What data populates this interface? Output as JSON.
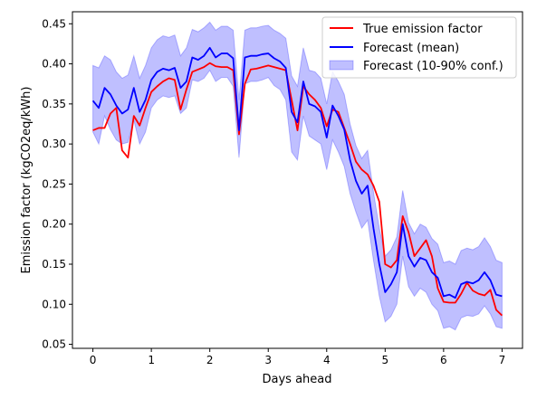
{
  "chart_data": {
    "type": "line",
    "title": "",
    "xlabel": "Days ahead",
    "ylabel": "Emission factor (kgCO2eq/kWh)",
    "xlim": [
      -0.35,
      7.35
    ],
    "ylim": [
      0.045,
      0.465
    ],
    "xticks": [
      0,
      1,
      2,
      3,
      4,
      5,
      6,
      7
    ],
    "xtick_labels": [
      "0",
      "1",
      "2",
      "3",
      "4",
      "5",
      "6",
      "7"
    ],
    "yticks": [
      0.05,
      0.1,
      0.15,
      0.2,
      0.25,
      0.3,
      0.35,
      0.4,
      0.45
    ],
    "ytick_labels": [
      "0.05",
      "0.10",
      "0.15",
      "0.20",
      "0.25",
      "0.30",
      "0.35",
      "0.40",
      "0.45"
    ],
    "grid": false,
    "legend_position": "top-right",
    "legend": {
      "true": "True emission factor",
      "mean": "Forecast (mean)",
      "band": "Forecast (10-90% conf.)"
    },
    "colors": {
      "true": "#ff0000",
      "mean": "#0000ff",
      "band_fill": "#0000ff",
      "band_opacity": 0.25
    },
    "x": [
      0.0,
      0.1,
      0.2,
      0.3,
      0.4,
      0.5,
      0.6,
      0.7,
      0.8,
      0.9,
      1.0,
      1.1,
      1.2,
      1.3,
      1.4,
      1.5,
      1.6,
      1.7,
      1.8,
      1.9,
      2.0,
      2.1,
      2.2,
      2.3,
      2.4,
      2.5,
      2.6,
      2.7,
      2.8,
      2.9,
      3.0,
      3.1,
      3.2,
      3.3,
      3.4,
      3.5,
      3.6,
      3.7,
      3.8,
      3.9,
      4.0,
      4.1,
      4.2,
      4.3,
      4.4,
      4.5,
      4.6,
      4.7,
      4.8,
      4.9,
      5.0,
      5.1,
      5.2,
      5.3,
      5.4,
      5.5,
      5.6,
      5.7,
      5.8,
      5.9,
      6.0,
      6.1,
      6.2,
      6.3,
      6.4,
      6.5,
      6.6,
      6.7,
      6.8,
      6.9,
      7.0
    ],
    "series": [
      {
        "name": "True emission factor",
        "values": [
          0.317,
          0.32,
          0.32,
          0.338,
          0.345,
          0.292,
          0.283,
          0.335,
          0.323,
          0.345,
          0.365,
          0.372,
          0.378,
          0.382,
          0.38,
          0.343,
          0.368,
          0.39,
          0.393,
          0.396,
          0.401,
          0.397,
          0.396,
          0.396,
          0.392,
          0.312,
          0.375,
          0.393,
          0.394,
          0.396,
          0.398,
          0.396,
          0.394,
          0.392,
          0.355,
          0.317,
          0.372,
          0.362,
          0.355,
          0.345,
          0.322,
          0.343,
          0.34,
          0.32,
          0.3,
          0.278,
          0.268,
          0.262,
          0.248,
          0.228,
          0.15,
          0.146,
          0.155,
          0.21,
          0.19,
          0.16,
          0.17,
          0.18,
          0.16,
          0.12,
          0.103,
          0.102,
          0.102,
          0.113,
          0.127,
          0.117,
          0.113,
          0.111,
          0.118,
          0.093,
          0.086
        ]
      },
      {
        "name": "Forecast (mean)",
        "values": [
          0.354,
          0.345,
          0.37,
          0.362,
          0.348,
          0.338,
          0.343,
          0.37,
          0.34,
          0.355,
          0.38,
          0.39,
          0.394,
          0.392,
          0.395,
          0.37,
          0.378,
          0.408,
          0.405,
          0.41,
          0.42,
          0.408,
          0.413,
          0.413,
          0.407,
          0.317,
          0.408,
          0.41,
          0.41,
          0.412,
          0.413,
          0.407,
          0.403,
          0.395,
          0.34,
          0.327,
          0.378,
          0.35,
          0.347,
          0.34,
          0.308,
          0.348,
          0.335,
          0.318,
          0.28,
          0.254,
          0.238,
          0.248,
          0.195,
          0.15,
          0.115,
          0.125,
          0.14,
          0.2,
          0.16,
          0.147,
          0.158,
          0.155,
          0.14,
          0.133,
          0.11,
          0.112,
          0.108,
          0.125,
          0.128,
          0.126,
          0.13,
          0.14,
          0.13,
          0.112,
          0.11
        ]
      }
    ],
    "band": {
      "name": "Forecast (10-90% conf.)",
      "lower": [
        0.315,
        0.3,
        0.335,
        0.318,
        0.305,
        0.3,
        0.302,
        0.33,
        0.3,
        0.315,
        0.345,
        0.355,
        0.36,
        0.358,
        0.36,
        0.338,
        0.345,
        0.38,
        0.378,
        0.382,
        0.392,
        0.378,
        0.383,
        0.383,
        0.372,
        0.283,
        0.375,
        0.378,
        0.378,
        0.38,
        0.383,
        0.373,
        0.368,
        0.355,
        0.29,
        0.28,
        0.335,
        0.31,
        0.305,
        0.3,
        0.268,
        0.305,
        0.29,
        0.272,
        0.238,
        0.215,
        0.195,
        0.205,
        0.155,
        0.11,
        0.078,
        0.085,
        0.1,
        0.16,
        0.122,
        0.11,
        0.12,
        0.115,
        0.1,
        0.092,
        0.07,
        0.072,
        0.068,
        0.083,
        0.086,
        0.085,
        0.088,
        0.098,
        0.088,
        0.072,
        0.07
      ],
      "upper": [
        0.398,
        0.395,
        0.41,
        0.405,
        0.39,
        0.382,
        0.386,
        0.41,
        0.382,
        0.398,
        0.42,
        0.43,
        0.435,
        0.433,
        0.436,
        0.41,
        0.42,
        0.443,
        0.44,
        0.445,
        0.452,
        0.442,
        0.447,
        0.447,
        0.442,
        0.355,
        0.442,
        0.445,
        0.445,
        0.447,
        0.448,
        0.442,
        0.438,
        0.432,
        0.385,
        0.372,
        0.42,
        0.392,
        0.39,
        0.382,
        0.35,
        0.39,
        0.378,
        0.362,
        0.325,
        0.298,
        0.282,
        0.292,
        0.24,
        0.195,
        0.16,
        0.168,
        0.184,
        0.242,
        0.202,
        0.188,
        0.2,
        0.196,
        0.182,
        0.175,
        0.152,
        0.154,
        0.15,
        0.167,
        0.17,
        0.168,
        0.172,
        0.183,
        0.172,
        0.155,
        0.152
      ]
    }
  }
}
